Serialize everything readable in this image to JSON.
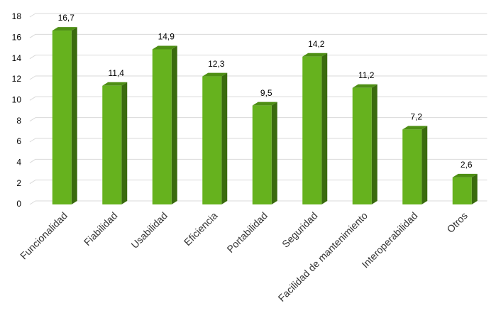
{
  "chart_data": {
    "type": "bar",
    "categories": [
      "Funcionalidad",
      "Fiabilidad",
      "Usabilidad",
      "Eficiencia",
      "Portabilidad",
      "Seguridad",
      "Facilidad de mantenimiento",
      "Interoperabilidad",
      "Otros"
    ],
    "values": [
      16.7,
      11.4,
      14.9,
      12.3,
      9.5,
      14.2,
      11.2,
      7.2,
      2.6
    ],
    "value_labels": [
      "16,7",
      "11,4",
      "14,9",
      "12,3",
      "9,5",
      "14,2",
      "11,2",
      "7,2",
      "2,6"
    ],
    "color": "#66b21e",
    "ylim": [
      0,
      18
    ],
    "yticks": [
      0,
      2,
      4,
      6,
      8,
      10,
      12,
      14,
      16,
      18
    ],
    "grid": true
  }
}
